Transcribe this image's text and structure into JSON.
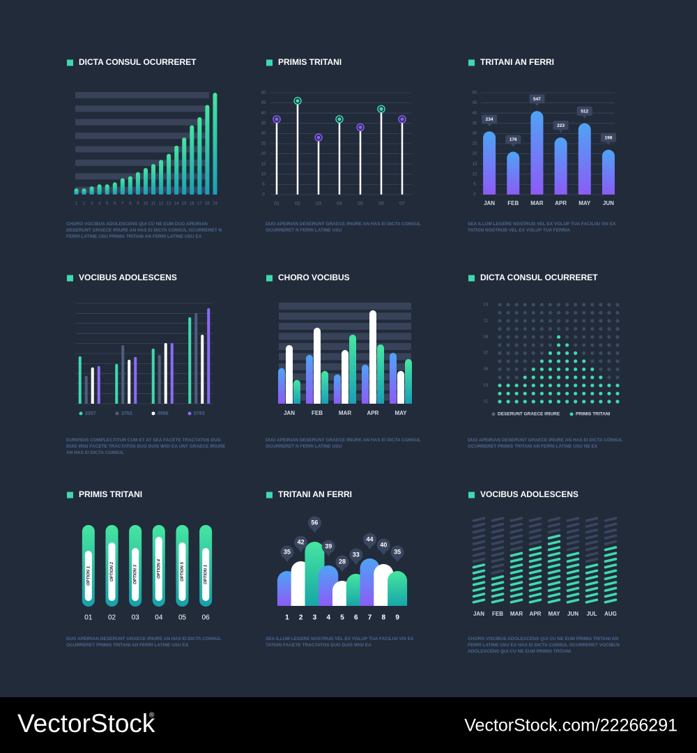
{
  "chart_data": [
    {
      "type": "bar",
      "title": "DICTA CONSUL OCURRERET",
      "description": "CHORO VOCIBUS ADOLESCENS QUI CU NE EUM DUO APEIRIAN DESERUNT GRAECE IRIURE AN HAS EI DICTA CONSUL OCURRERET N FERRI LATINE USU PRIMIS TRITANI AN FERRI LATINE USU EX",
      "categories": [
        "1",
        "2",
        "3",
        "4",
        "5",
        "6",
        "7",
        "8",
        "9",
        "10",
        "11",
        "12",
        "13",
        "14",
        "15",
        "16",
        "17",
        "18",
        "19"
      ],
      "values": [
        3,
        3,
        4,
        5,
        5,
        6,
        8,
        9,
        11,
        13,
        15,
        17,
        20,
        24,
        28,
        34,
        38,
        44,
        50
      ],
      "ylim": [
        0,
        50
      ],
      "gradient": [
        "#46e6a0",
        "#1a9fb6"
      ]
    },
    {
      "type": "lollipop",
      "title": "PRIMIS TRITANI",
      "description": "DUO APEIRIAN DESERUNT GRAECE IRIURE AN HAS EI DICTA CONSUL OCURRERET N FERRI LATINE USU",
      "categories": [
        "01",
        "02",
        "03",
        "04",
        "05",
        "06",
        "07"
      ],
      "values": [
        37,
        46,
        28,
        37,
        33,
        42,
        37
      ],
      "point_colors": [
        "#8b5cf6",
        "#3fd9b0",
        "#8b5cf6",
        "#3fd9b0",
        "#8b5cf6",
        "#3fd9b0",
        "#8b5cf6"
      ],
      "ylim": [
        0,
        50
      ],
      "yticks": [
        0,
        5,
        10,
        15,
        20,
        25,
        30,
        35,
        40,
        45,
        50
      ],
      "grid": true
    },
    {
      "type": "bar",
      "title": "TRITANI AN FERRI",
      "description": "SEA ILLUM LEGERE NOSTRUD VEL EX VOLUP TUA FACILISI VIS EX TATION NOSTRUD VEL EX VOLUP TUA FERRIA",
      "categories": [
        "JAN",
        "FEB",
        "MAR",
        "APR",
        "MAY",
        "JUN"
      ],
      "values": [
        31,
        21,
        41,
        28,
        35,
        22
      ],
      "callouts": [
        "234",
        "176",
        "547",
        "223",
        "512",
        "198"
      ],
      "ylim": [
        0,
        50
      ],
      "yticks": [
        0,
        5,
        10,
        15,
        20,
        25,
        30,
        35,
        40,
        45,
        50
      ],
      "grid": true,
      "gradient": [
        "#4fa3f5",
        "#8b5cf6"
      ]
    },
    {
      "type": "grouped-bar",
      "title": "VOCIBUS ADOLESCENS",
      "description": "EURIPIDIS COMPLECTITUR CUM ET AT SEA FACETE TRACTATOS DUO DUIS WISI FACETE TRACTATOS DUO DUIS WISI EA UNT GRAECE IRIURE AN HAS EI DICTA CONSUL",
      "ylim": [
        0,
        140
      ],
      "series": [
        {
          "name": "2357",
          "color": "#3fd9b0",
          "values": [
            68,
            57,
            79,
            124
          ]
        },
        {
          "name": "3753",
          "color": "#4d5f7a",
          "values": [
            40,
            84,
            70,
            130
          ]
        },
        {
          "name": "3956",
          "color": "#ffffff",
          "values": [
            52,
            63,
            87,
            99
          ]
        },
        {
          "name": "5783",
          "color": "#8b6cf6",
          "values": [
            54,
            67,
            87,
            137
          ]
        }
      ]
    },
    {
      "type": "grouped-bar",
      "title": "CHORO VOCIBUS",
      "description": "DUO APEIRIAN DESERUNT GRAECE IRIURE AN HAS EI DICTA CONSUL OCURRERET N FERRI LATINE USU",
      "categories": [
        "JAN",
        "FEB",
        "MAR",
        "APR",
        "MAY"
      ],
      "ylim": [
        0,
        140
      ],
      "series": [
        {
          "gradient": [
            "#4fa3f5",
            "#8b5cf6"
          ],
          "values": [
            51,
            70,
            42,
            56,
            73
          ]
        },
        {
          "gradient": [
            "#ffffff",
            "#ffffff"
          ],
          "values": [
            84,
            109,
            77,
            134,
            47
          ]
        },
        {
          "gradient": [
            "#46e6a0",
            "#1a9fb6"
          ],
          "values": [
            34,
            47,
            99,
            85,
            64
          ]
        }
      ]
    },
    {
      "type": "dot-matrix",
      "title": "DICTA CONSUL OCURRERET",
      "description": "DUO APEIRIAN DESERUNT GRAECE IRIURE AN HAS EI DICTA CONSUL OCURRERET PRIMIS TRITANI AN FERRI LATINE USU NE EX",
      "ylim": [
        1,
        13
      ],
      "yticks": [
        {
          "value": 1,
          "label": "01"
        },
        {
          "value": 3,
          "label": "03"
        },
        {
          "value": 5,
          "label": "05"
        },
        {
          "value": 7,
          "label": "07"
        },
        {
          "value": 9,
          "label": "09"
        },
        {
          "value": 11,
          "label": "11"
        },
        {
          "value": 13,
          "label": "13"
        }
      ],
      "series": [
        {
          "name": "DESERUNT GRAECE IRIURE",
          "color": "#3b4a63"
        },
        {
          "name": "PRIMIS TRITANI",
          "color": "#3fd9b0",
          "values": [
            3,
            3,
            3,
            4,
            5,
            6,
            7,
            9,
            8,
            7,
            6,
            5,
            4,
            3,
            3
          ]
        }
      ]
    },
    {
      "type": "capsule-bar",
      "title": "PRIMIS TRITANI",
      "description": "DUO APEIRIAN DESERUNT GRAECE IRIURE AN HAS EI DICTA CONSUL OCURRERET PRIMIS TRITANI AN FERRI LATINE USU EX",
      "categories": [
        "01",
        "02",
        "03",
        "04",
        "05",
        "06"
      ],
      "bar_labels": [
        "OPTION 1",
        "OPTION 2",
        "OPTION 3",
        "OPTION 4",
        "OPTION 5",
        "OPTION 1"
      ],
      "values": [
        72,
        84,
        76,
        92,
        84,
        76
      ],
      "ylim": [
        0,
        100
      ],
      "gradient": [
        "#46e6a0",
        "#17a0a8"
      ]
    },
    {
      "type": "overlap-bar",
      "title": "TRITANI AN FERRI",
      "description": "SEA ILLUM LEGERE NOSTRUD VEL EX VOLUP TUA FACILISI VIS EX TATION FACETE TRACTATOS DUO DUIS WISI EA",
      "categories": [
        "1",
        "2",
        "3",
        "4",
        "5",
        "6",
        "7",
        "8",
        "9"
      ],
      "values": [
        35,
        42,
        56,
        39,
        28,
        33,
        44,
        40,
        35
      ],
      "ylim": [
        10,
        60
      ],
      "gradients": [
        [
          "#4fa3f5",
          "#8b5cf6"
        ],
        [
          "#ffffff",
          "#ffffff"
        ],
        [
          "#46e6a0",
          "#17a6a8"
        ]
      ]
    },
    {
      "type": "stripe-column",
      "title": "VOCIBUS ADOLESCENS",
      "description": "CHORO VOCIBUS ADOLESCENS QUI CU NE EUM PRIMIS TRITANI AN FERRI LATINE USU EX HAS EI DICTA CONSUL OCURRERET VOCIBUS ADOLESCENS QUI CU NE EUM PRIMIS TRITANI",
      "categories": [
        "JAN",
        "FEB",
        "MAR",
        "APR",
        "MAY",
        "JUN",
        "JUL",
        "AUG"
      ],
      "values": [
        7,
        5,
        9,
        10,
        12,
        9,
        7,
        10
      ],
      "ylim": [
        0,
        15
      ],
      "color": "#3fd9b0",
      "rest_color": "#3a4660"
    }
  ],
  "footer": {
    "brand": "VectorStock",
    "mark": "®",
    "url": "VectorStock.com/22266291"
  }
}
